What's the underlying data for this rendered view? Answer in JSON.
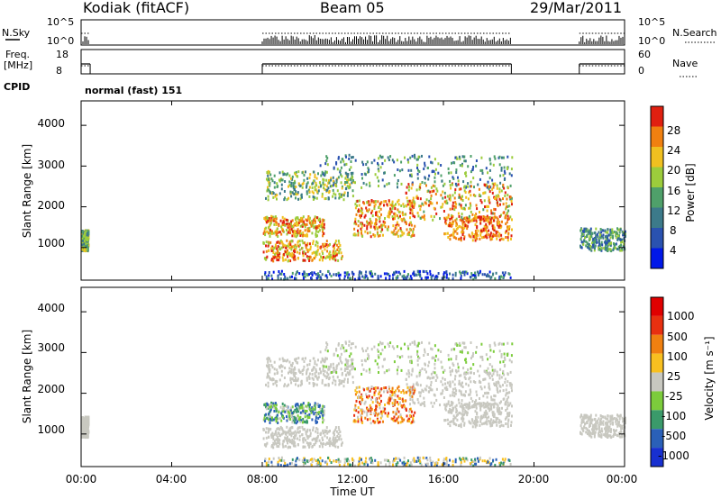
{
  "header": {
    "title": "Kodiak (fitACF)",
    "beam": "Beam 05",
    "date": "29/Mar/2011"
  },
  "summary": {
    "nsky_label": "N.Sky",
    "nsky_ticks": [
      "10^5",
      "10^0"
    ],
    "nsearch_label": "N.Search",
    "nsearch_ticks": [
      "10^5",
      "10^0"
    ],
    "freq_label": "Freq.",
    "freq_unit": "[MHz]",
    "freq_ticks": [
      "18",
      "8"
    ],
    "nave_label": "Nave",
    "nave_ticks": [
      "60",
      "0"
    ],
    "cpid_label": "CPID",
    "cpid_value": "normal (fast) 151"
  },
  "chart_data": [
    {
      "type": "heatmap",
      "parameter": "power",
      "ylabel": "Slant Range [km]",
      "ylim": [
        200,
        4600
      ],
      "yticks": [
        "4000",
        "3000",
        "2000",
        "1000"
      ],
      "xlim_hours": [
        0,
        24
      ],
      "colorbar_label": "Power [dB]",
      "colorbar_ticks": [
        "28",
        "24",
        "20",
        "16",
        "12",
        "8",
        "4"
      ],
      "colors": [
        "#0018e8",
        "#2a52b0",
        "#3c7a8a",
        "#4fa06a",
        "#9ccc3c",
        "#f0c020",
        "#f08010",
        "#e02010"
      ],
      "data_gaps_hours": [
        [
          0.5,
          8.0
        ],
        [
          19.0,
          22.0
        ]
      ]
    },
    {
      "type": "heatmap",
      "parameter": "velocity",
      "ylabel": "Slant Range [km]",
      "ylim": [
        200,
        4600
      ],
      "yticks": [
        "4000",
        "3000",
        "2000",
        "1000"
      ],
      "xlim_hours": [
        0,
        24
      ],
      "colorbar_label": "Velocity [m s⁻¹]",
      "colorbar_ticks": [
        "1000",
        "500",
        "100",
        "25",
        "-25",
        "-100",
        "-500",
        "-1000"
      ],
      "colors": [
        "#1830d0",
        "#2a60b8",
        "#3a9a6a",
        "#7ccc3c",
        "#c8c8c0",
        "#f8c020",
        "#f08010",
        "#e83010",
        "#e00000"
      ],
      "data_gaps_hours": [
        [
          0.5,
          8.0
        ],
        [
          19.0,
          22.0
        ]
      ]
    }
  ],
  "xaxis": {
    "label": "Time UT",
    "ticks": [
      "00:00",
      "04:00",
      "08:00",
      "12:00",
      "16:00",
      "20:00",
      "00:00"
    ]
  }
}
